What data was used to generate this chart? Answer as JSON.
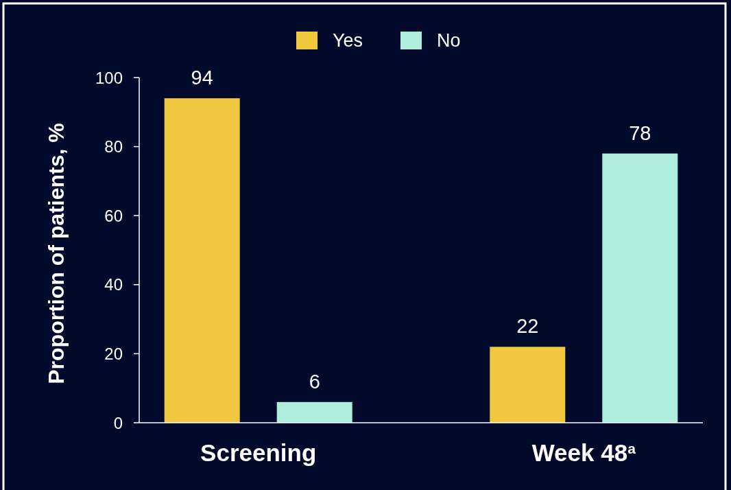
{
  "chart_data": {
    "type": "bar",
    "ylabel": "Proportion of patients, %",
    "categories": [
      "Screening",
      "Week 48$^{a}$"
    ],
    "series": [
      {
        "name": "Yes",
        "color": "#f0c840",
        "values": [
          94,
          22
        ]
      },
      {
        "name": "No",
        "color": "#b0ecdc",
        "values": [
          6,
          78
        ]
      }
    ],
    "ylim": [
      0,
      100
    ],
    "yticks": [
      0,
      20,
      40,
      60,
      80,
      100
    ],
    "data_labels": true,
    "legend": "top",
    "grid": false
  }
}
